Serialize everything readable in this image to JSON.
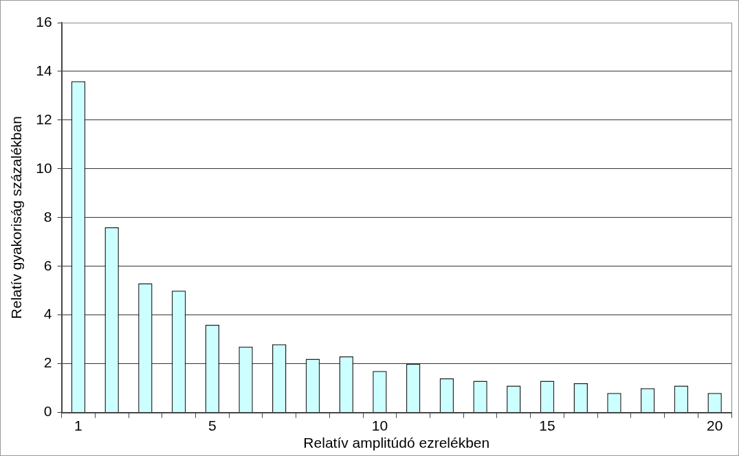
{
  "chart_data": {
    "type": "bar",
    "xlabel": "Relatív amplitúdó ezrelékben",
    "ylabel": "Relatív gyakoriság százalékban",
    "categories": [
      "1",
      null,
      null,
      null,
      "5",
      null,
      null,
      null,
      null,
      "10",
      null,
      null,
      null,
      null,
      "15",
      null,
      null,
      null,
      null,
      "20"
    ],
    "values": [
      13.6,
      7.6,
      5.3,
      5.0,
      3.6,
      2.7,
      2.8,
      2.2,
      2.3,
      1.7,
      2.0,
      1.4,
      1.3,
      1.1,
      1.3,
      1.2,
      0.8,
      1.0,
      1.1,
      0.8
    ],
    "color": "#ccffff",
    "ylim": [
      0,
      16
    ],
    "yticks": [
      0,
      2,
      4,
      6,
      8,
      10,
      12,
      14,
      16
    ],
    "grid": "y",
    "legend": false
  }
}
